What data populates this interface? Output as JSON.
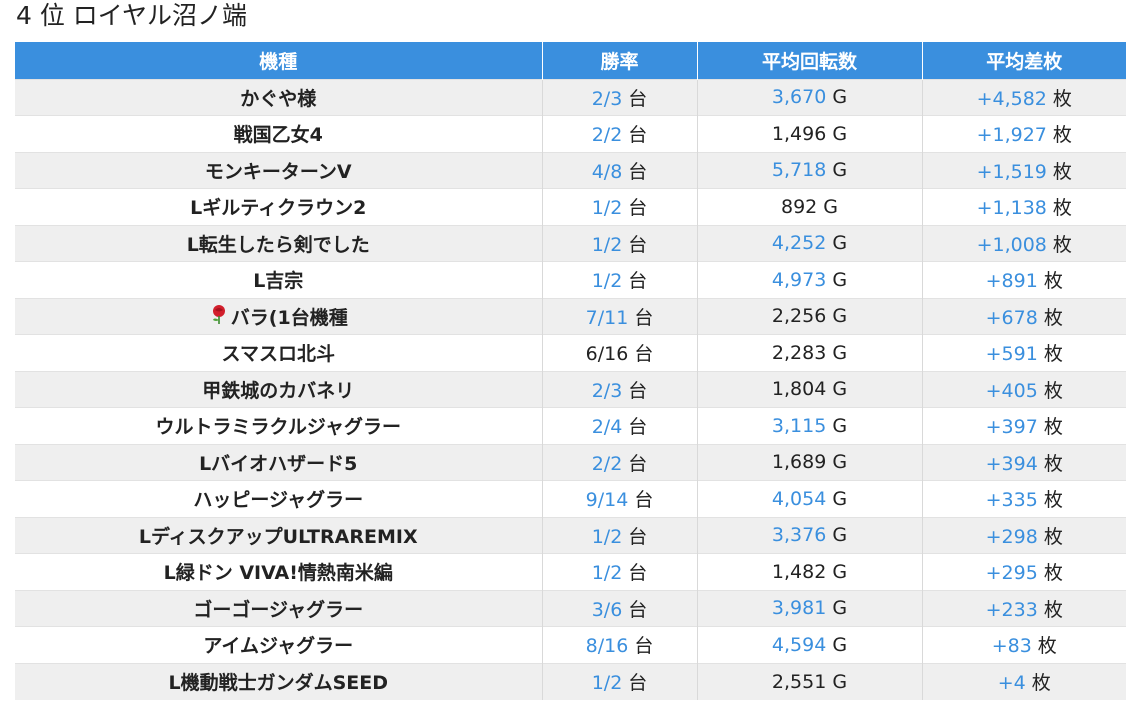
{
  "title": "4 位 ロイヤル沼ノ端",
  "colors": {
    "header_bg": "#3a8fde",
    "highlight": "#3a8fde",
    "row_alt": "#efefef"
  },
  "headers": [
    "機種",
    "勝率",
    "平均回転数",
    "平均差枚"
  ],
  "units": {
    "machines": "台",
    "spins": "G",
    "coins": "枚"
  },
  "rows": [
    {
      "name": "かぐや様",
      "win": "2/3",
      "win_hl": true,
      "spins": "3,670",
      "spins_hl": true,
      "diff": "+4,582"
    },
    {
      "name": "戦国乙女4",
      "win": "2/2",
      "win_hl": true,
      "spins": "1,496",
      "spins_hl": false,
      "diff": "+1,927"
    },
    {
      "name": "モンキーターンV",
      "win": "4/8",
      "win_hl": true,
      "spins": "5,718",
      "spins_hl": true,
      "diff": "+1,519"
    },
    {
      "name": "Lギルティクラウン2",
      "win": "1/2",
      "win_hl": true,
      "spins": "892",
      "spins_hl": false,
      "diff": "+1,138"
    },
    {
      "name": "L転生したら剣でした",
      "win": "1/2",
      "win_hl": true,
      "spins": "4,252",
      "spins_hl": true,
      "diff": "+1,008"
    },
    {
      "name": "L吉宗",
      "win": "1/2",
      "win_hl": true,
      "spins": "4,973",
      "spins_hl": true,
      "diff": "+891"
    },
    {
      "name": "バラ(1台機種",
      "rose": true,
      "win": "7/11",
      "win_hl": true,
      "spins": "2,256",
      "spins_hl": false,
      "diff": "+678"
    },
    {
      "name": "スマスロ北斗",
      "win": "6/16",
      "win_hl": false,
      "spins": "2,283",
      "spins_hl": false,
      "diff": "+591"
    },
    {
      "name": "甲鉄城のカバネリ",
      "win": "2/3",
      "win_hl": true,
      "spins": "1,804",
      "spins_hl": false,
      "diff": "+405"
    },
    {
      "name": "ウルトラミラクルジャグラー",
      "win": "2/4",
      "win_hl": true,
      "spins": "3,115",
      "spins_hl": true,
      "diff": "+397"
    },
    {
      "name": "Lバイオハザード5",
      "win": "2/2",
      "win_hl": true,
      "spins": "1,689",
      "spins_hl": false,
      "diff": "+394"
    },
    {
      "name": "ハッピージャグラー",
      "win": "9/14",
      "win_hl": true,
      "spins": "4,054",
      "spins_hl": true,
      "diff": "+335"
    },
    {
      "name": "LディスクアップULTRAREMIX",
      "win": "1/2",
      "win_hl": true,
      "spins": "3,376",
      "spins_hl": true,
      "diff": "+298"
    },
    {
      "name": "L緑ドン VIVA!情熱南米編",
      "win": "1/2",
      "win_hl": true,
      "spins": "1,482",
      "spins_hl": false,
      "diff": "+295"
    },
    {
      "name": "ゴーゴージャグラー",
      "win": "3/6",
      "win_hl": true,
      "spins": "3,981",
      "spins_hl": true,
      "diff": "+233"
    },
    {
      "name": "アイムジャグラー",
      "win": "8/16",
      "win_hl": true,
      "spins": "4,594",
      "spins_hl": true,
      "diff": "+83"
    },
    {
      "name": "L機動戦士ガンダムSEED",
      "win": "1/2",
      "win_hl": true,
      "spins": "2,551",
      "spins_hl": false,
      "diff": "+4"
    }
  ]
}
